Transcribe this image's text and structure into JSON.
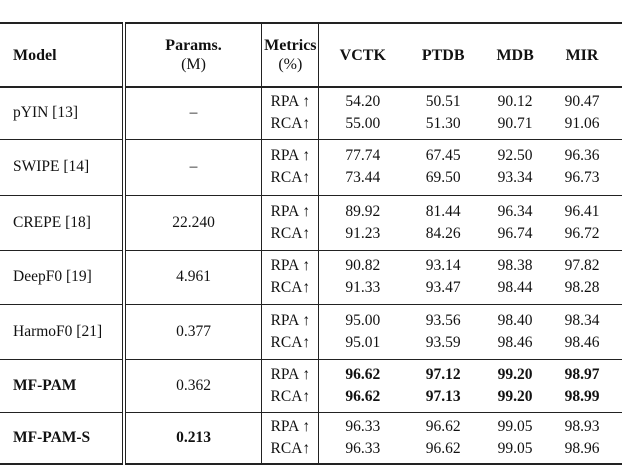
{
  "table": {
    "headers": {
      "model": "Model",
      "params": [
        "Params.",
        "(M)"
      ],
      "metrics": [
        "Metrics",
        "(%)"
      ],
      "datasets": [
        "VCTK",
        "PTDB",
        "MDB",
        "MIR"
      ]
    },
    "rows": [
      {
        "model": "pYIN [13]",
        "params": "–",
        "metrics": [
          "RPA ↑",
          "RCA↑"
        ],
        "values": [
          [
            "54.20",
            "50.51",
            "90.12",
            "90.47"
          ],
          [
            "55.00",
            "51.30",
            "90.71",
            "91.06"
          ]
        ]
      },
      {
        "model": "SWIPE [14]",
        "params": "–",
        "metrics": [
          "RPA ↑",
          "RCA↑"
        ],
        "values": [
          [
            "77.74",
            "67.45",
            "92.50",
            "96.36"
          ],
          [
            "73.44",
            "69.50",
            "93.34",
            "96.73"
          ]
        ]
      },
      {
        "model": "CREPE [18]",
        "params": "22.240",
        "metrics": [
          "RPA ↑",
          "RCA↑"
        ],
        "values": [
          [
            "89.92",
            "81.44",
            "96.34",
            "96.41"
          ],
          [
            "91.23",
            "84.26",
            "96.74",
            "96.72"
          ]
        ]
      },
      {
        "model": "DeepF0 [19]",
        "params": "4.961",
        "metrics": [
          "RPA ↑",
          "RCA↑"
        ],
        "values": [
          [
            "90.82",
            "93.14",
            "98.38",
            "97.82"
          ],
          [
            "91.33",
            "93.47",
            "98.44",
            "98.28"
          ]
        ]
      },
      {
        "model": "HarmoF0 [21]",
        "params": "0.377",
        "metrics": [
          "RPA ↑",
          "RCA↑"
        ],
        "values": [
          [
            "95.00",
            "93.56",
            "98.40",
            "98.34"
          ],
          [
            "95.01",
            "93.59",
            "98.46",
            "98.46"
          ]
        ]
      },
      {
        "model": "MF-PAM",
        "params": "0.362",
        "metrics": [
          "RPA ↑",
          "RCA↑"
        ],
        "values": [
          [
            "96.62",
            "97.12",
            "99.20",
            "98.97"
          ],
          [
            "96.62",
            "97.13",
            "99.20",
            "98.99"
          ]
        ],
        "bold_model": true,
        "bold_values": true
      },
      {
        "model": "MF-PAM-S",
        "params": "0.213",
        "metrics": [
          "RPA ↑",
          "RCA↑"
        ],
        "values": [
          [
            "96.33",
            "96.62",
            "99.05",
            "98.93"
          ],
          [
            "96.33",
            "96.62",
            "99.05",
            "98.96"
          ]
        ],
        "bold_model": true,
        "bold_params": true
      }
    ]
  }
}
